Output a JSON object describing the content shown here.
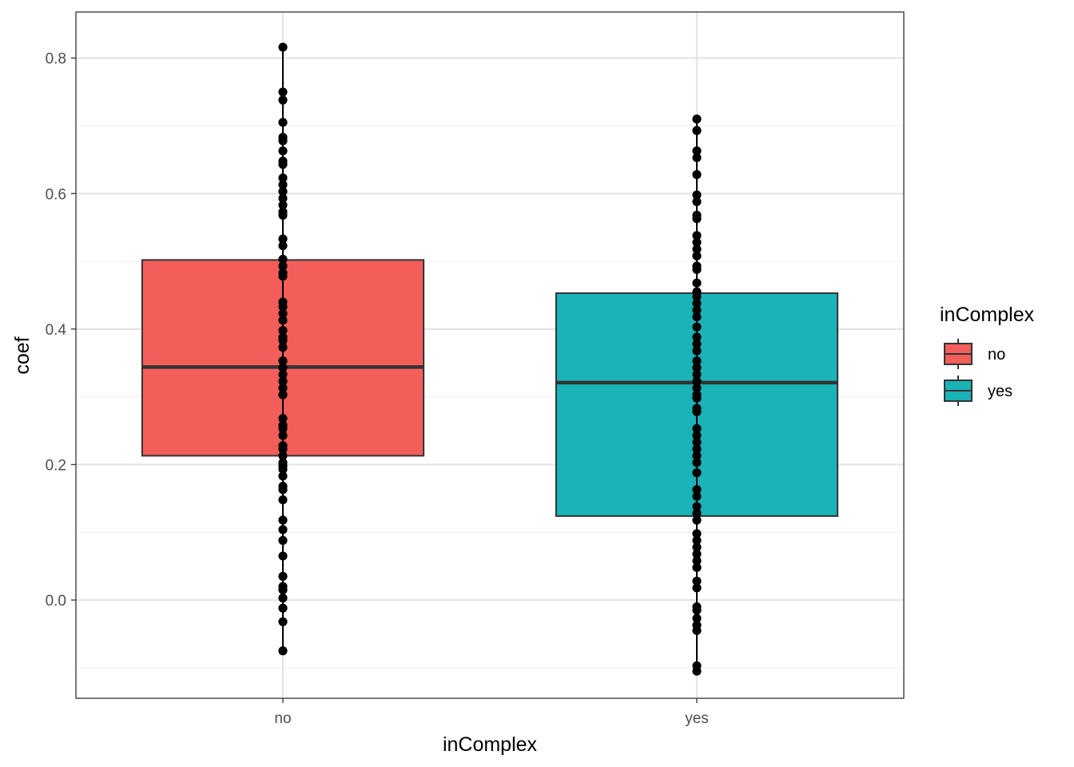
{
  "chart_data": {
    "type": "boxplot",
    "xlabel": "inComplex",
    "ylabel": "coef",
    "categories": [
      "no",
      "yes"
    ],
    "ylim": [
      -0.145,
      0.868
    ],
    "yticks": [
      0.0,
      0.2,
      0.4,
      0.6,
      0.8
    ],
    "ytick_labels": [
      "0.0",
      "0.2",
      "0.4",
      "0.6",
      "0.8"
    ],
    "grid": true,
    "legend": {
      "title": "inComplex",
      "position": "right",
      "entries": [
        "no",
        "yes"
      ]
    },
    "colors": {
      "no": "#F35E5A",
      "yes": "#19B3B8",
      "box_stroke": "#333333",
      "points": "#000000",
      "grid_major": "#e5e5e5",
      "grid_minor": "#f0f0f0",
      "panel_border": "#333333"
    },
    "boxes": [
      {
        "name": "no",
        "q1": 0.213,
        "median": 0.344,
        "q3": 0.502,
        "whisker_low": -0.075,
        "whisker_high": 0.816,
        "points": [
          0.816,
          0.75,
          0.738,
          0.705,
          0.683,
          0.678,
          0.663,
          0.648,
          0.643,
          0.623,
          0.613,
          0.603,
          0.593,
          0.583,
          0.573,
          0.568,
          0.533,
          0.523,
          0.503,
          0.493,
          0.483,
          0.478,
          0.44,
          0.433,
          0.423,
          0.413,
          0.398,
          0.388,
          0.383,
          0.373,
          0.353,
          0.343,
          0.333,
          0.323,
          0.313,
          0.303,
          0.268,
          0.258,
          0.253,
          0.243,
          0.228,
          0.223,
          0.213,
          0.203,
          0.198,
          0.193,
          0.183,
          0.168,
          0.163,
          0.148,
          0.118,
          0.104,
          0.088,
          0.065,
          0.035,
          0.02,
          0.015,
          0.003,
          -0.012,
          -0.032,
          -0.075
        ]
      },
      {
        "name": "yes",
        "q1": 0.124,
        "median": 0.321,
        "q3": 0.453,
        "whisker_low": -0.105,
        "whisker_high": 0.71,
        "points": [
          0.71,
          0.693,
          0.663,
          0.653,
          0.628,
          0.598,
          0.588,
          0.568,
          0.563,
          0.538,
          0.528,
          0.518,
          0.508,
          0.493,
          0.488,
          0.468,
          0.455,
          0.448,
          0.438,
          0.428,
          0.418,
          0.403,
          0.388,
          0.378,
          0.368,
          0.353,
          0.343,
          0.333,
          0.323,
          0.313,
          0.303,
          0.298,
          0.283,
          0.278,
          0.253,
          0.243,
          0.233,
          0.223,
          0.213,
          0.203,
          0.188,
          0.163,
          0.153,
          0.138,
          0.128,
          0.118,
          0.098,
          0.088,
          0.078,
          0.068,
          0.058,
          0.048,
          0.028,
          0.018,
          -0.01,
          -0.015,
          -0.027,
          -0.037,
          -0.045,
          -0.097,
          -0.105
        ]
      }
    ]
  }
}
